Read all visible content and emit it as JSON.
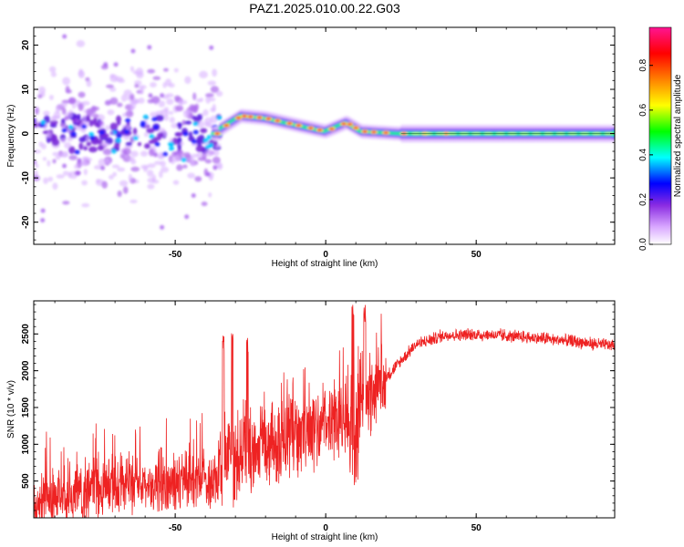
{
  "figure_title": "PAZ1.2025.010.00.22.G03",
  "chart_data": [
    {
      "type": "heatmap",
      "title": "PAZ1.2025.010.00.22.G03",
      "xlabel": "Height of straight line (km)",
      "ylabel": "Frequency (Hz)",
      "xlim": [
        -97,
        96
      ],
      "ylim": [
        -25,
        24
      ],
      "x_ticks": [
        -50,
        0,
        50
      ],
      "y_ticks": [
        -20,
        -10,
        0,
        10,
        20
      ],
      "colorbar": {
        "label": "Normalized spectral amplitude",
        "range": [
          0.0,
          0.97
        ],
        "ticks": [
          0.0,
          0.2,
          0.4,
          0.6,
          0.8
        ],
        "tick_labels": [
          "0.0",
          "0.2",
          "0.4",
          "0.6",
          "0.8"
        ],
        "colors": [
          "#ffffff",
          "#d9a8ff",
          "#8a2be2",
          "#0000ff",
          "#00ffff",
          "#00ff00",
          "#ffff00",
          "#ff8000",
          "#ff0000",
          "#ff1493"
        ]
      },
      "ridge_center": [
        {
          "x": -35,
          "f": 1
        },
        {
          "x": -28,
          "f": 4
        },
        {
          "x": -20,
          "f": 3.5
        },
        {
          "x": -10,
          "f": 2
        },
        {
          "x": 0,
          "f": 0.5
        },
        {
          "x": 7,
          "f": 2.5
        },
        {
          "x": 12,
          "f": 0.5
        },
        {
          "x": 25,
          "f": 0
        },
        {
          "x": 96,
          "f": 0
        }
      ]
    },
    {
      "type": "line",
      "xlabel": "Height of straight line (km)",
      "ylabel": "SNR (10 * v/v)",
      "xlim": [
        -97,
        96
      ],
      "ylim": [
        0,
        2950
      ],
      "x_ticks": [
        -50,
        0,
        50
      ],
      "y_ticks": [
        500,
        1000,
        1500,
        2000,
        2500
      ],
      "color": "#ee2222",
      "trend": [
        {
          "x": -97,
          "y": 150
        },
        {
          "x": -80,
          "y": 350
        },
        {
          "x": -60,
          "y": 450
        },
        {
          "x": -45,
          "y": 450
        },
        {
          "x": -38,
          "y": 500
        },
        {
          "x": -30,
          "y": 700
        },
        {
          "x": -20,
          "y": 900
        },
        {
          "x": -10,
          "y": 1100
        },
        {
          "x": 0,
          "y": 1250
        },
        {
          "x": 10,
          "y": 1400
        },
        {
          "x": 20,
          "y": 1900
        },
        {
          "x": 30,
          "y": 2350
        },
        {
          "x": 40,
          "y": 2480
        },
        {
          "x": 55,
          "y": 2480
        },
        {
          "x": 75,
          "y": 2420
        },
        {
          "x": 96,
          "y": 2330
        }
      ],
      "spikes": [
        {
          "x": -34,
          "y": 2500
        },
        {
          "x": -31,
          "y": 2600
        },
        {
          "x": -26,
          "y": 2450
        },
        {
          "x": 9,
          "y": 2950
        },
        {
          "x": 13,
          "y": 2900
        }
      ]
    }
  ]
}
